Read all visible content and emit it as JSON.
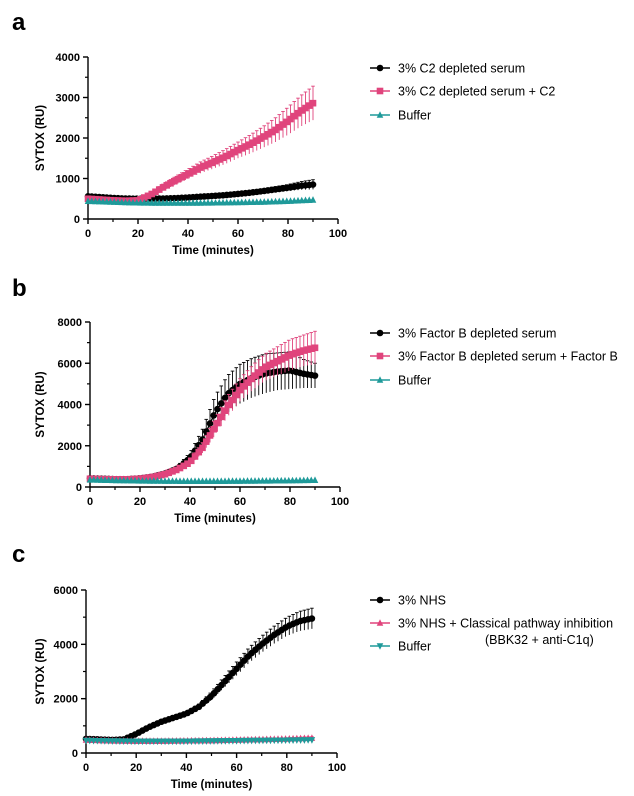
{
  "colors": {
    "black": "#000000",
    "pink": "#e0447c",
    "teal": "#1f9a9a"
  },
  "chart_data": [
    {
      "panel": "a",
      "type": "line",
      "xlabel": "Time (minutes)",
      "ylabel": "SYTOX (RU)",
      "xlim": [
        0,
        100
      ],
      "ylim": [
        0,
        4000
      ],
      "xticks": [
        "0",
        "20",
        "40",
        "60",
        "80",
        "100"
      ],
      "yticks": [
        "0",
        "1000",
        "2000",
        "3000",
        "4000"
      ],
      "legend_position": "right",
      "series": [
        {
          "name": "3% C2 depleted serum",
          "color": "#000000",
          "marker": "circle",
          "points": [
            [
              0,
              560
            ],
            [
              5,
              540
            ],
            [
              10,
              520
            ],
            [
              15,
              505
            ],
            [
              20,
              500
            ],
            [
              25,
              500
            ],
            [
              30,
              505
            ],
            [
              35,
              515
            ],
            [
              40,
              530
            ],
            [
              45,
              550
            ],
            [
              50,
              570
            ],
            [
              55,
              590
            ],
            [
              60,
              620
            ],
            [
              65,
              650
            ],
            [
              70,
              690
            ],
            [
              75,
              730
            ],
            [
              80,
              770
            ],
            [
              85,
              820
            ],
            [
              90,
              850
            ]
          ],
          "err": [
            [
              0,
              40
            ],
            [
              5,
              30
            ],
            [
              10,
              30
            ],
            [
              15,
              30
            ],
            [
              20,
              30
            ],
            [
              25,
              30
            ],
            [
              30,
              30
            ],
            [
              35,
              30
            ],
            [
              40,
              30
            ],
            [
              45,
              30
            ],
            [
              50,
              40
            ],
            [
              55,
              40
            ],
            [
              60,
              40
            ],
            [
              65,
              50
            ],
            [
              70,
              60
            ],
            [
              75,
              70
            ],
            [
              80,
              80
            ],
            [
              85,
              100
            ],
            [
              90,
              120
            ]
          ]
        },
        {
          "name": "3% C2 depleted serum + C2",
          "color": "#e0447c",
          "marker": "square",
          "points": [
            [
              0,
              500
            ],
            [
              5,
              480
            ],
            [
              10,
              460
            ],
            [
              15,
              450
            ],
            [
              20,
              460
            ],
            [
              25,
              600
            ],
            [
              30,
              780
            ],
            [
              35,
              950
            ],
            [
              40,
              1110
            ],
            [
              45,
              1270
            ],
            [
              50,
              1400
            ],
            [
              55,
              1540
            ],
            [
              60,
              1700
            ],
            [
              65,
              1850
            ],
            [
              70,
              2020
            ],
            [
              75,
              2200
            ],
            [
              80,
              2420
            ],
            [
              85,
              2660
            ],
            [
              90,
              2860
            ]
          ],
          "err": [
            [
              0,
              40
            ],
            [
              5,
              40
            ],
            [
              10,
              40
            ],
            [
              15,
              40
            ],
            [
              20,
              40
            ],
            [
              25,
              60
            ],
            [
              30,
              80
            ],
            [
              35,
              100
            ],
            [
              40,
              120
            ],
            [
              45,
              140
            ],
            [
              50,
              160
            ],
            [
              55,
              180
            ],
            [
              60,
              200
            ],
            [
              65,
              230
            ],
            [
              70,
              260
            ],
            [
              75,
              300
            ],
            [
              80,
              340
            ],
            [
              85,
              380
            ],
            [
              90,
              420
            ]
          ]
        },
        {
          "name": "Buffer",
          "color": "#1f9a9a",
          "marker": "triangle",
          "points": [
            [
              0,
              440
            ],
            [
              10,
              420
            ],
            [
              20,
              400
            ],
            [
              30,
              395
            ],
            [
              40,
              395
            ],
            [
              50,
              400
            ],
            [
              60,
              410
            ],
            [
              70,
              420
            ],
            [
              80,
              440
            ],
            [
              90,
              470
            ]
          ],
          "err": []
        }
      ]
    },
    {
      "panel": "b",
      "type": "line",
      "xlabel": "Time (minutes)",
      "ylabel": "SYTOX (RU)",
      "xlim": [
        0,
        100
      ],
      "ylim": [
        0,
        8000
      ],
      "xticks": [
        "0",
        "20",
        "40",
        "60",
        "80",
        "100"
      ],
      "yticks": [
        "0",
        "2000",
        "4000",
        "6000",
        "8000"
      ],
      "legend_position": "right",
      "series": [
        {
          "name": "3% Factor B depleted serum",
          "color": "#000000",
          "marker": "circle",
          "points": [
            [
              0,
              420
            ],
            [
              5,
              400
            ],
            [
              10,
              380
            ],
            [
              15,
              380
            ],
            [
              20,
              420
            ],
            [
              25,
              500
            ],
            [
              30,
              650
            ],
            [
              35,
              900
            ],
            [
              40,
              1400
            ],
            [
              45,
              2300
            ],
            [
              50,
              3600
            ],
            [
              55,
              4500
            ],
            [
              60,
              5000
            ],
            [
              65,
              5300
            ],
            [
              70,
              5500
            ],
            [
              75,
              5600
            ],
            [
              80,
              5650
            ],
            [
              85,
              5500
            ],
            [
              90,
              5400
            ]
          ],
          "err": [
            [
              0,
              40
            ],
            [
              5,
              40
            ],
            [
              10,
              40
            ],
            [
              15,
              40
            ],
            [
              20,
              50
            ],
            [
              25,
              60
            ],
            [
              30,
              80
            ],
            [
              35,
              120
            ],
            [
              40,
              250
            ],
            [
              45,
              500
            ],
            [
              50,
              800
            ],
            [
              55,
              900
            ],
            [
              60,
              950
            ],
            [
              65,
              950
            ],
            [
              70,
              950
            ],
            [
              75,
              900
            ],
            [
              80,
              900
            ],
            [
              85,
              700
            ],
            [
              90,
              600
            ]
          ]
        },
        {
          "name": "3% Factor B depleted serum + Factor B",
          "color": "#e0447c",
          "marker": "square",
          "points": [
            [
              0,
              400
            ],
            [
              5,
              380
            ],
            [
              10,
              370
            ],
            [
              15,
              370
            ],
            [
              20,
              400
            ],
            [
              25,
              480
            ],
            [
              30,
              620
            ],
            [
              35,
              850
            ],
            [
              40,
              1200
            ],
            [
              45,
              1900
            ],
            [
              50,
              2900
            ],
            [
              55,
              3900
            ],
            [
              60,
              4700
            ],
            [
              65,
              5300
            ],
            [
              70,
              5800
            ],
            [
              75,
              6100
            ],
            [
              80,
              6400
            ],
            [
              85,
              6600
            ],
            [
              90,
              6750
            ]
          ],
          "err": [
            [
              0,
              40
            ],
            [
              5,
              40
            ],
            [
              10,
              40
            ],
            [
              15,
              40
            ],
            [
              20,
              50
            ],
            [
              25,
              60
            ],
            [
              30,
              70
            ],
            [
              35,
              90
            ],
            [
              40,
              130
            ],
            [
              45,
              250
            ],
            [
              50,
              400
            ],
            [
              55,
              500
            ],
            [
              60,
              550
            ],
            [
              65,
              600
            ],
            [
              70,
              650
            ],
            [
              75,
              700
            ],
            [
              80,
              750
            ],
            [
              85,
              750
            ],
            [
              90,
              800
            ]
          ]
        },
        {
          "name": "Buffer",
          "color": "#1f9a9a",
          "marker": "triangle",
          "points": [
            [
              0,
              350
            ],
            [
              10,
              320
            ],
            [
              20,
              300
            ],
            [
              30,
              290
            ],
            [
              40,
              280
            ],
            [
              50,
              280
            ],
            [
              60,
              290
            ],
            [
              70,
              300
            ],
            [
              80,
              310
            ],
            [
              90,
              330
            ]
          ],
          "err": []
        }
      ]
    },
    {
      "panel": "c",
      "type": "line",
      "xlabel": "Time (minutes)",
      "ylabel": "SYTOX (RU)",
      "xlim": [
        0,
        100
      ],
      "ylim": [
        0,
        6000
      ],
      "xticks": [
        "0",
        "20",
        "40",
        "60",
        "80",
        "100"
      ],
      "yticks": [
        "0",
        "2000",
        "4000",
        "6000"
      ],
      "legend_position": "right",
      "series": [
        {
          "name": "3% NHS",
          "color": "#000000",
          "marker": "circle",
          "points": [
            [
              0,
              520
            ],
            [
              5,
              500
            ],
            [
              10,
              480
            ],
            [
              15,
              500
            ],
            [
              20,
              700
            ],
            [
              25,
              950
            ],
            [
              30,
              1150
            ],
            [
              35,
              1300
            ],
            [
              40,
              1450
            ],
            [
              45,
              1700
            ],
            [
              50,
              2100
            ],
            [
              55,
              2600
            ],
            [
              60,
              3100
            ],
            [
              65,
              3600
            ],
            [
              70,
              4000
            ],
            [
              75,
              4350
            ],
            [
              80,
              4650
            ],
            [
              85,
              4850
            ],
            [
              90,
              4950
            ]
          ],
          "err": [
            [
              0,
              40
            ],
            [
              5,
              40
            ],
            [
              10,
              40
            ],
            [
              15,
              40
            ],
            [
              20,
              50
            ],
            [
              25,
              60
            ],
            [
              30,
              70
            ],
            [
              35,
              80
            ],
            [
              40,
              80
            ],
            [
              45,
              100
            ],
            [
              50,
              150
            ],
            [
              55,
              200
            ],
            [
              60,
              250
            ],
            [
              65,
              280
            ],
            [
              70,
              300
            ],
            [
              75,
              320
            ],
            [
              80,
              340
            ],
            [
              85,
              360
            ],
            [
              90,
              380
            ]
          ]
        },
        {
          "name": "3% NHS + Classical pathway inhibition",
          "name_line2": "(BBK32 + anti-C1q)",
          "color": "#e0447c",
          "marker": "triangle",
          "points": [
            [
              0,
              480
            ],
            [
              10,
              450
            ],
            [
              20,
              440
            ],
            [
              30,
              440
            ],
            [
              40,
              450
            ],
            [
              50,
              460
            ],
            [
              60,
              480
            ],
            [
              70,
              500
            ],
            [
              80,
              520
            ],
            [
              90,
              550
            ]
          ],
          "err": [
            [
              0,
              30
            ],
            [
              10,
              30
            ],
            [
              20,
              30
            ],
            [
              30,
              30
            ],
            [
              40,
              30
            ],
            [
              50,
              30
            ],
            [
              60,
              30
            ],
            [
              70,
              30
            ],
            [
              80,
              40
            ],
            [
              90,
              50
            ]
          ]
        },
        {
          "name": "Buffer",
          "color": "#1f9a9a",
          "marker": "triangle-down",
          "points": [
            [
              0,
              460
            ],
            [
              10,
              440
            ],
            [
              20,
              430
            ],
            [
              30,
              430
            ],
            [
              40,
              430
            ],
            [
              50,
              440
            ],
            [
              60,
              450
            ],
            [
              70,
              460
            ],
            [
              80,
              470
            ],
            [
              90,
              480
            ]
          ],
          "err": []
        }
      ]
    }
  ]
}
